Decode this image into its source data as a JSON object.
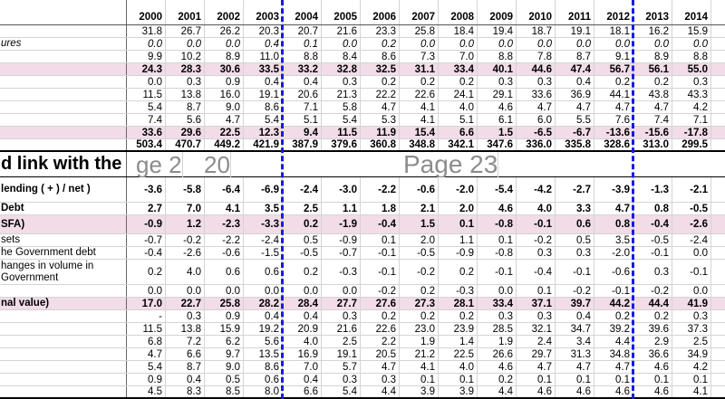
{
  "years": [
    "2000",
    "2001",
    "2002",
    "2003",
    "2004",
    "2005",
    "2006",
    "2007",
    "2008",
    "2009",
    "2010",
    "2011",
    "2012",
    "2013",
    "2014",
    ""
  ],
  "section_title": "d link with the defi",
  "watermarks": {
    "page_left": "ge 2",
    "page_left_suffix": "20",
    "page_right": "Page 23"
  },
  "rows": [
    {
      "label": "",
      "style": "r14",
      "values": [
        "31.8",
        "26.7",
        "26.2",
        "20.3",
        "20.7",
        "21.6",
        "23.3",
        "25.8",
        "18.4",
        "19.4",
        "18.7",
        "19.1",
        "18.1",
        "16.2",
        "15.9",
        ""
      ]
    },
    {
      "label": "ures",
      "style": "r14 italic",
      "values": [
        "0.0",
        "0.0",
        "0.0",
        "0.4",
        "0.1",
        "0.0",
        "0.2",
        "0.0",
        "0.0",
        "0.0",
        "0.0",
        "0.0",
        "0.0",
        "0.0",
        "0.0",
        ""
      ]
    },
    {
      "label": "",
      "style": "r14",
      "values": [
        "9.9",
        "10.2",
        "8.9",
        "11.0",
        "8.8",
        "8.4",
        "8.6",
        "7.3",
        "7.0",
        "8.8",
        "7.8",
        "8.7",
        "9.1",
        "8.9",
        "8.8",
        ""
      ]
    },
    {
      "label": "",
      "style": "r14 pink bold",
      "values": [
        "24.3",
        "28.3",
        "30.6",
        "33.5",
        "33.2",
        "32.8",
        "32.5",
        "31.1",
        "33.4",
        "40.1",
        "44.6",
        "47.4",
        "56.7",
        "56.1",
        "55.0",
        ""
      ]
    },
    {
      "label": "",
      "style": "r14",
      "values": [
        "0.0",
        "0.3",
        "0.9",
        "0.4",
        "0.4",
        "0.3",
        "0.2",
        "0.2",
        "0.2",
        "0.3",
        "0.3",
        "0.4",
        "0.2",
        "0.2",
        "0.3",
        ""
      ]
    },
    {
      "label": "",
      "style": "r14",
      "values": [
        "11.5",
        "13.8",
        "16.0",
        "19.1",
        "20.6",
        "21.3",
        "22.2",
        "22.6",
        "24.1",
        "29.1",
        "33.6",
        "36.9",
        "44.1",
        "43.8",
        "43.3",
        ""
      ]
    },
    {
      "label": "",
      "style": "r14",
      "values": [
        "5.4",
        "8.7",
        "9.0",
        "8.6",
        "7.1",
        "5.8",
        "4.7",
        "4.1",
        "4.0",
        "4.6",
        "4.7",
        "4.7",
        "4.7",
        "4.7",
        "4.2",
        ""
      ]
    },
    {
      "label": "",
      "style": "r14",
      "values": [
        "7.4",
        "5.6",
        "4.7",
        "5.4",
        "5.1",
        "5.4",
        "5.3",
        "4.1",
        "5.1",
        "6.1",
        "6.0",
        "5.5",
        "7.6",
        "7.4",
        "7.1",
        ""
      ]
    },
    {
      "label": "",
      "style": "r14 pink bold",
      "values": [
        "33.6",
        "29.6",
        "22.5",
        "12.3",
        "9.4",
        "11.5",
        "11.9",
        "15.4",
        "6.6",
        "1.5",
        "-6.5",
        "-6.7",
        "-13.6",
        "-15.6",
        "-17.8",
        ""
      ]
    },
    {
      "label": "",
      "style": "r14 bold thickb",
      "values": [
        "503.4",
        "470.7",
        "449.2",
        "421.9",
        "387.9",
        "379.6",
        "360.8",
        "348.8",
        "342.1",
        "347.6",
        "336.0",
        "335.8",
        "328.6",
        "313.0",
        "299.5",
        ""
      ]
    }
  ],
  "rows2": [
    {
      "label": "lending ( + ) / net )",
      "style": "r28 bold",
      "values": [
        "-3.6",
        "-5.8",
        "-6.4",
        "-6.9",
        "-2.4",
        "-3.0",
        "-2.2",
        "-0.6",
        "-2.0",
        "-5.4",
        "-4.2",
        "-2.7",
        "-3.9",
        "-1.3",
        "-2.1",
        ""
      ]
    },
    {
      "label": "Debt",
      "style": "r14 bold",
      "values": [
        "2.7",
        "7.0",
        "4.1",
        "3.5",
        "2.5",
        "1.1",
        "1.8",
        "2.1",
        "2.0",
        "4.6",
        "4.0",
        "3.3",
        "4.7",
        "0.8",
        "-0.5",
        ""
      ]
    },
    {
      "label": "SFA)",
      "style": "r21 pink bold",
      "values": [
        "-0.9",
        "1.2",
        "-2.3",
        "-3.3",
        "0.2",
        "-1.9",
        "-0.4",
        "1.5",
        "0.1",
        "-0.8",
        "-0.1",
        "0.6",
        "0.8",
        "-0.4",
        "-2.6",
        ""
      ]
    },
    {
      "label": "sets",
      "style": "r14",
      "values": [
        "-0.7",
        "-0.2",
        "-2.2",
        "-2.4",
        "0.5",
        "-0.9",
        "0.1",
        "2.0",
        "1.1",
        "0.1",
        "-0.2",
        "0.5",
        "3.5",
        "-0.5",
        "-2.4",
        ""
      ]
    },
    {
      "label": "he Government debt",
      "style": "r14",
      "values": [
        "-0.4",
        "-2.6",
        "-0.6",
        "-1.5",
        "-0.5",
        "-0.7",
        "-0.1",
        "-0.5",
        "-0.9",
        "-0.8",
        "0.3",
        "0.3",
        "-2.0",
        "-0.1",
        "0.0",
        ""
      ]
    },
    {
      "label": "hanges in volume in Government",
      "style": "r28",
      "values": [
        "0.2",
        "4.0",
        "0.6",
        "0.6",
        "0.2",
        "-0.3",
        "-0.1",
        "-0.2",
        "0.2",
        "-0.1",
        "-0.4",
        "-0.1",
        "-0.6",
        "0.3",
        "-0.1",
        ""
      ]
    },
    {
      "label": "",
      "style": "r14",
      "values": [
        "0.0",
        "0.0",
        "0.0",
        "0.0",
        "0.0",
        "0.0",
        "-0.2",
        "0.2",
        "-0.3",
        "0.0",
        "0.1",
        "-0.2",
        "-0.1",
        "-0.2",
        "0.0",
        ""
      ]
    },
    {
      "label": "nal value)",
      "style": "r14 pink bold",
      "values": [
        "17.0",
        "22.7",
        "25.8",
        "28.2",
        "28.4",
        "27.7",
        "27.6",
        "27.3",
        "28.1",
        "33.4",
        "37.1",
        "39.7",
        "44.2",
        "44.4",
        "41.9",
        ""
      ]
    },
    {
      "label": "",
      "style": "r14",
      "values": [
        "-",
        "0.3",
        "0.9",
        "0.4",
        "0.4",
        "0.3",
        "0.2",
        "0.2",
        "0.2",
        "0.3",
        "0.3",
        "0.4",
        "0.2",
        "0.2",
        "0.3",
        ""
      ]
    },
    {
      "label": "",
      "style": "r14",
      "values": [
        "11.5",
        "13.8",
        "15.9",
        "19.2",
        "20.9",
        "21.6",
        "22.6",
        "23.0",
        "23.9",
        "28.5",
        "32.1",
        "34.7",
        "39.2",
        "39.6",
        "37.3",
        ""
      ]
    },
    {
      "label": "",
      "style": "r14",
      "values": [
        "6.8",
        "7.2",
        "6.2",
        "5.6",
        "4.0",
        "2.5",
        "2.2",
        "1.9",
        "1.4",
        "1.9",
        "2.4",
        "3.4",
        "4.4",
        "2.9",
        "2.5",
        ""
      ]
    },
    {
      "label": "",
      "style": "r14",
      "values": [
        "4.7",
        "6.6",
        "9.7",
        "13.5",
        "16.9",
        "19.1",
        "20.5",
        "21.2",
        "22.5",
        "26.6",
        "29.7",
        "31.3",
        "34.8",
        "36.6",
        "34.9",
        ""
      ]
    },
    {
      "label": "",
      "style": "r14",
      "values": [
        "5.4",
        "8.7",
        "9.0",
        "8.6",
        "7.0",
        "5.7",
        "4.7",
        "4.1",
        "4.0",
        "4.6",
        "4.7",
        "4.7",
        "4.7",
        "4.6",
        "4.2",
        ""
      ]
    },
    {
      "label": "",
      "style": "r14",
      "values": [
        "0.9",
        "0.4",
        "0.5",
        "0.6",
        "0.4",
        "0.3",
        "0.3",
        "0.1",
        "0.1",
        "0.2",
        "0.1",
        "0.1",
        "0.1",
        "0.1",
        "0.1",
        ""
      ]
    },
    {
      "label": "",
      "style": "r14 last",
      "values": [
        "4.5",
        "8.3",
        "8.5",
        "8.0",
        "6.6",
        "5.4",
        "4.4",
        "3.9",
        "3.9",
        "4.4",
        "4.6",
        "4.6",
        "4.6",
        "4.6",
        "4.1",
        ""
      ]
    }
  ]
}
